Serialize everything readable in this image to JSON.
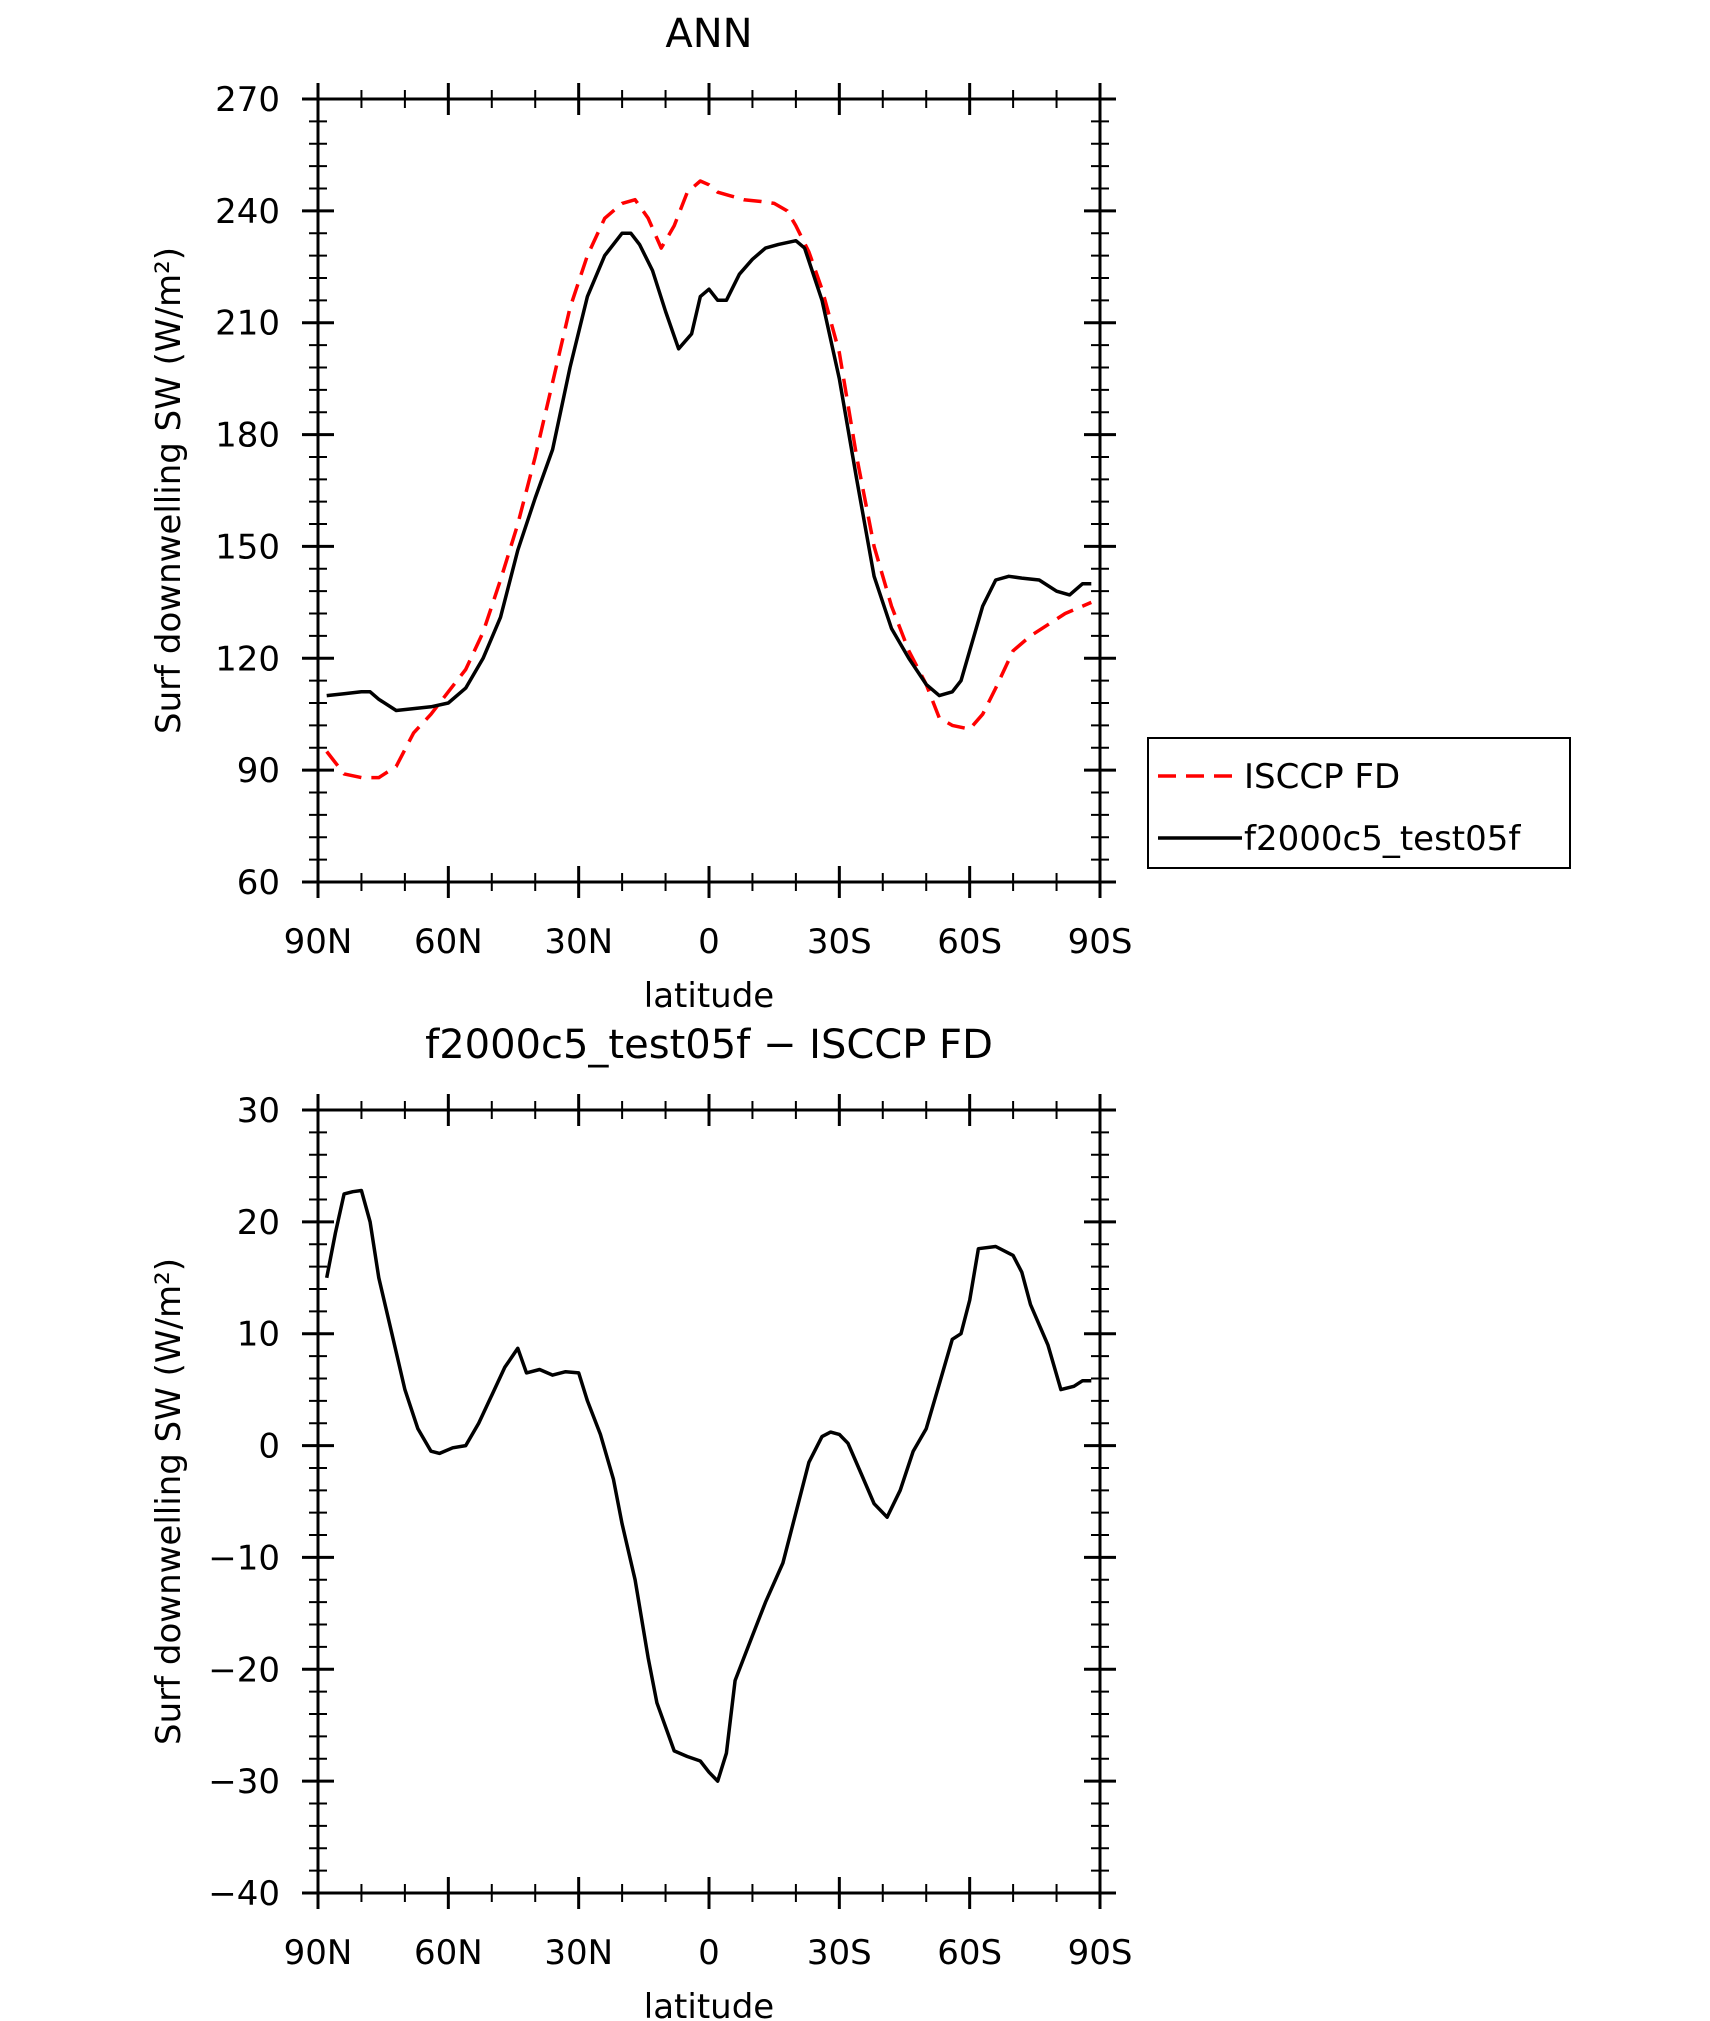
{
  "chart_data": [
    {
      "type": "line",
      "title": "ANN",
      "xlabel": "latitude",
      "ylabel": "Surf downwelling SW (W/m²)",
      "xlim": [
        90,
        -90
      ],
      "ylim": [
        60,
        270
      ],
      "x_ticks": [
        90,
        60,
        30,
        0,
        -30,
        -60,
        -90
      ],
      "x_tick_labels": [
        "90N",
        "60N",
        "30N",
        "0",
        "30S",
        "60S",
        "90S"
      ],
      "y_ticks": [
        60,
        90,
        120,
        150,
        180,
        210,
        240,
        270
      ],
      "y_tick_labels": [
        "60",
        "90",
        "120",
        "150",
        "180",
        "210",
        "240",
        "270"
      ],
      "legend": "right",
      "series": [
        {
          "name": "ISCCP FD",
          "color": "#ff0000",
          "style": "dashed",
          "x": [
            88,
            84,
            80,
            78,
            76,
            72,
            68,
            64,
            60,
            56,
            52,
            48,
            44,
            40,
            36,
            32,
            28,
            24,
            20,
            17,
            14,
            11,
            8,
            5,
            2,
            0,
            -2,
            -5,
            -8,
            -12,
            -15,
            -18,
            -20,
            -23,
            -26,
            -30,
            -34,
            -38,
            -42,
            -46,
            -50,
            -53,
            -56,
            -60,
            -63,
            -66,
            -70,
            -74,
            -78,
            -82,
            -86,
            -88
          ],
          "y": [
            95,
            89,
            88,
            88,
            88,
            91,
            100,
            105,
            111,
            117,
            127,
            141,
            156,
            174,
            194,
            214,
            228,
            238,
            242,
            243,
            238,
            230,
            236,
            245,
            248,
            247,
            245,
            244,
            243,
            242.5,
            242,
            240,
            236,
            229,
            219,
            202,
            174,
            150,
            134,
            122,
            113,
            104,
            102,
            101,
            105,
            112,
            122,
            126,
            129,
            132,
            134,
            135
          ]
        },
        {
          "name": "f2000c5_test05f",
          "color": "#000000",
          "style": "solid",
          "x": [
            88,
            84,
            80,
            78,
            76,
            72,
            68,
            64,
            60,
            56,
            52,
            48,
            44,
            40,
            36,
            32,
            28,
            24,
            20,
            18,
            16,
            13,
            10,
            7,
            4,
            2,
            0,
            -2,
            -4,
            -7,
            -10,
            -13,
            -16,
            -20,
            -22,
            -26,
            -30,
            -34,
            -38,
            -42,
            -46,
            -50,
            -53,
            -56,
            -58,
            -60,
            -63,
            -66,
            -69,
            -72,
            -76,
            -80,
            -83,
            -86,
            -88
          ],
          "y": [
            110,
            110.5,
            111,
            111,
            109,
            106,
            106.5,
            107,
            108,
            112,
            120,
            131,
            149,
            163,
            176,
            198,
            217,
            228,
            234,
            234,
            231,
            224,
            213,
            203,
            207,
            217,
            219,
            216,
            216,
            223,
            227,
            230,
            231,
            232,
            230,
            216,
            195,
            168,
            142,
            128,
            120,
            113,
            110,
            111,
            114,
            122,
            134,
            141,
            142,
            141.5,
            141,
            138,
            137,
            140,
            140
          ]
        }
      ]
    },
    {
      "type": "line",
      "title": "f2000c5_test05f − ISCCP FD",
      "xlabel": "latitude",
      "ylabel": "Surf downwelling SW (W/m²)",
      "xlim": [
        90,
        -90
      ],
      "ylim": [
        -40,
        30
      ],
      "x_ticks": [
        90,
        60,
        30,
        0,
        -30,
        -60,
        -90
      ],
      "x_tick_labels": [
        "90N",
        "60N",
        "30N",
        "0",
        "30S",
        "60S",
        "90S"
      ],
      "y_ticks": [
        -40,
        -30,
        -20,
        -10,
        0,
        10,
        20,
        30
      ],
      "y_tick_labels": [
        "−40",
        "−30",
        "−20",
        "−10",
        "0",
        "10",
        "20",
        "30"
      ],
      "series": [
        {
          "color": "#000000",
          "style": "solid",
          "x": [
            88,
            86,
            84,
            82,
            80,
            78,
            76,
            73,
            70,
            67,
            64,
            62,
            59,
            56,
            53,
            50,
            47,
            44,
            42,
            39,
            36,
            33,
            30,
            28,
            25,
            22,
            20,
            17,
            14,
            12,
            8,
            5,
            2,
            0,
            -2,
            -4,
            -6,
            -10,
            -13,
            -17,
            -20,
            -23,
            -26,
            -28,
            -30,
            -32,
            -35,
            -38,
            -41,
            -44,
            -47,
            -50,
            -53,
            -56,
            -58,
            -60,
            -62,
            -66,
            -70,
            -72,
            -74,
            -78,
            -81,
            -84,
            -86,
            -88
          ],
          "y": [
            15,
            19,
            22.5,
            22.7,
            22.8,
            20,
            15,
            10,
            5,
            1.5,
            -0.5,
            -0.7,
            -0.2,
            0,
            2,
            4.5,
            7,
            8.7,
            6.5,
            6.8,
            6.3,
            6.6,
            6.5,
            4,
            1,
            -3,
            -7,
            -12,
            -19,
            -23,
            -27.3,
            -27.8,
            -28.2,
            -29.2,
            -30,
            -27.5,
            -21,
            -17,
            -14,
            -10.5,
            -6,
            -1.5,
            0.8,
            1.2,
            1,
            0.2,
            -2.5,
            -5.2,
            -6.4,
            -4,
            -0.5,
            1.5,
            5.5,
            9.5,
            10,
            13,
            17.6,
            17.8,
            17,
            15.5,
            12.6,
            9,
            5,
            5.3,
            5.8,
            5.8
          ]
        }
      ]
    }
  ]
}
